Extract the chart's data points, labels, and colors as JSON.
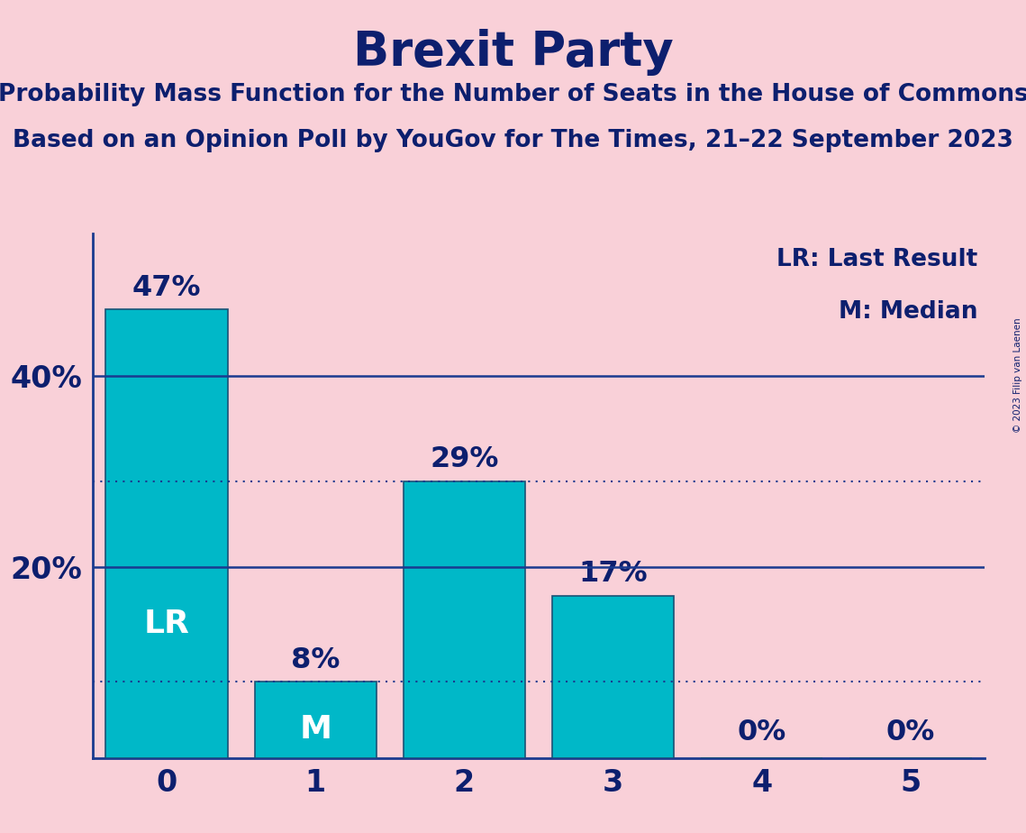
{
  "title": "Brexit Party",
  "subtitle1": "Probability Mass Function for the Number of Seats in the House of Commons",
  "subtitle2": "Based on an Opinion Poll by YouGov for The Times, 21–22 September 2023",
  "categories": [
    0,
    1,
    2,
    3,
    4,
    5
  ],
  "values": [
    47,
    8,
    29,
    17,
    0,
    0
  ],
  "bar_color": "#00B8C8",
  "bar_edge_color": "#1A5276",
  "background_color": "#F9D0D8",
  "title_color": "#0D1F6E",
  "text_color": "#0D1F6E",
  "axis_line_color": "#1A3A8F",
  "bar_label_color_inside": "#FFFFFF",
  "bar_label_color_outside": "#0D1F6E",
  "ytick_labels": [
    "20%",
    "40%"
  ],
  "ytick_values": [
    20,
    40
  ],
  "hlines_solid": [
    20,
    40
  ],
  "hlines_dotted": [
    8,
    29
  ],
  "bar_annotations": {
    "0": {
      "text": "LR",
      "inside": true
    },
    "1": {
      "text": "M",
      "inside": true
    }
  },
  "value_labels": [
    47,
    8,
    29,
    17,
    0,
    0
  ],
  "legend_text1": "LR: Last Result",
  "legend_text2": "M: Median",
  "copyright_text": "© 2023 Filip van Laenen",
  "title_fontsize": 38,
  "subtitle_fontsize": 19,
  "ylabel_fontsize": 24,
  "xlabel_fontsize": 24,
  "bar_annot_fontsize": 26,
  "value_label_fontsize": 23,
  "legend_fontsize": 19,
  "xlim": [
    -0.5,
    5.5
  ],
  "ylim": [
    0,
    55
  ],
  "bar_width": 0.82
}
